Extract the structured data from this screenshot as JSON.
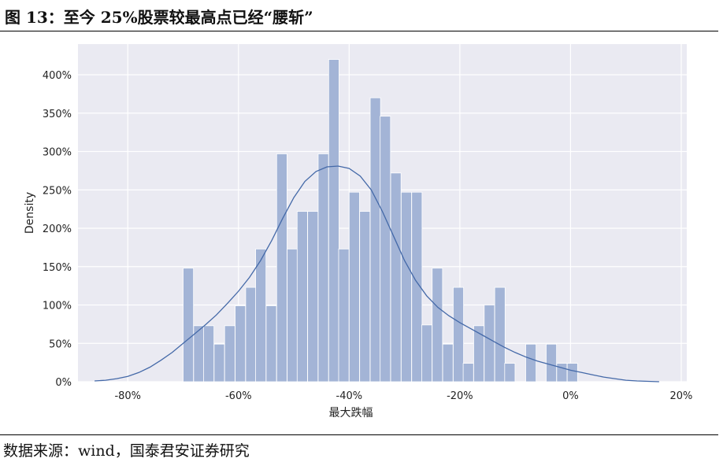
{
  "figure_title": "图 13：至今 25%股票较最高点已经“腰斩”",
  "source_note": "数据来源：wind，国泰君安证券研究",
  "chart_data": {
    "type": "bar",
    "title": "",
    "xlabel": "最大跌幅",
    "ylabel": "Density",
    "xlim": [
      -0.89,
      0.21
    ],
    "ylim": [
      0,
      4.4
    ],
    "x_ticks": [
      -0.8,
      -0.6,
      -0.4,
      -0.2,
      0.0,
      0.2
    ],
    "x_tick_labels": [
      "-80%",
      "-60%",
      "-40%",
      "-20%",
      "0%",
      "20%"
    ],
    "y_ticks": [
      0,
      0.5,
      1.0,
      1.5,
      2.0,
      2.5,
      3.0,
      3.5,
      4.0
    ],
    "y_tick_labels": [
      "0%",
      "50%",
      "100%",
      "150%",
      "200%",
      "250%",
      "300%",
      "350%",
      "400%"
    ],
    "grid": true,
    "legend": "none",
    "bar_color": "#a3b4d6",
    "curve_color": "#4469a8",
    "background_color": "#eaeaf2",
    "histogram": {
      "bin_width": 0.0187,
      "bin_starts": [
        -0.7,
        -0.681,
        -0.663,
        -0.644,
        -0.625,
        -0.606,
        -0.587,
        -0.569,
        -0.55,
        -0.531,
        -0.512,
        -0.494,
        -0.475,
        -0.456,
        -0.437,
        -0.419,
        -0.4,
        -0.381,
        -0.362,
        -0.344,
        -0.325,
        -0.306,
        -0.287,
        -0.269,
        -0.25,
        -0.231,
        -0.212,
        -0.194,
        -0.175,
        -0.156,
        -0.137,
        -0.119,
        -0.1,
        -0.081,
        -0.062,
        -0.044,
        -0.025,
        -0.006
      ],
      "density": [
        1.48,
        0.73,
        0.73,
        0.49,
        0.73,
        0.99,
        1.23,
        1.73,
        0.99,
        2.97,
        1.73,
        2.22,
        2.22,
        2.97,
        4.2,
        1.73,
        2.47,
        2.22,
        3.7,
        3.46,
        2.72,
        2.47,
        2.47,
        0.74,
        1.48,
        0.49,
        1.23,
        0.24,
        0.73,
        1.0,
        1.23,
        0.24,
        0,
        0.49,
        0,
        0.49,
        0.24,
        0.24
      ]
    },
    "kde": {
      "x": [
        -0.86,
        -0.84,
        -0.82,
        -0.8,
        -0.78,
        -0.76,
        -0.74,
        -0.72,
        -0.7,
        -0.68,
        -0.66,
        -0.64,
        -0.62,
        -0.6,
        -0.58,
        -0.56,
        -0.54,
        -0.52,
        -0.5,
        -0.48,
        -0.46,
        -0.44,
        -0.42,
        -0.4,
        -0.38,
        -0.36,
        -0.34,
        -0.32,
        -0.3,
        -0.28,
        -0.26,
        -0.24,
        -0.22,
        -0.2,
        -0.18,
        -0.16,
        -0.14,
        -0.12,
        -0.1,
        -0.08,
        -0.06,
        -0.04,
        -0.02,
        0.0,
        0.02,
        0.04,
        0.06,
        0.08,
        0.1,
        0.12,
        0.14,
        0.16
      ],
      "y": [
        0.01,
        0.02,
        0.04,
        0.07,
        0.12,
        0.19,
        0.28,
        0.38,
        0.5,
        0.62,
        0.74,
        0.87,
        1.02,
        1.18,
        1.36,
        1.58,
        1.84,
        2.13,
        2.4,
        2.61,
        2.74,
        2.8,
        2.81,
        2.78,
        2.68,
        2.5,
        2.22,
        1.9,
        1.58,
        1.32,
        1.12,
        0.97,
        0.86,
        0.77,
        0.69,
        0.61,
        0.53,
        0.45,
        0.38,
        0.32,
        0.27,
        0.23,
        0.19,
        0.15,
        0.12,
        0.09,
        0.06,
        0.04,
        0.02,
        0.01,
        0.005,
        0.0
      ]
    }
  }
}
